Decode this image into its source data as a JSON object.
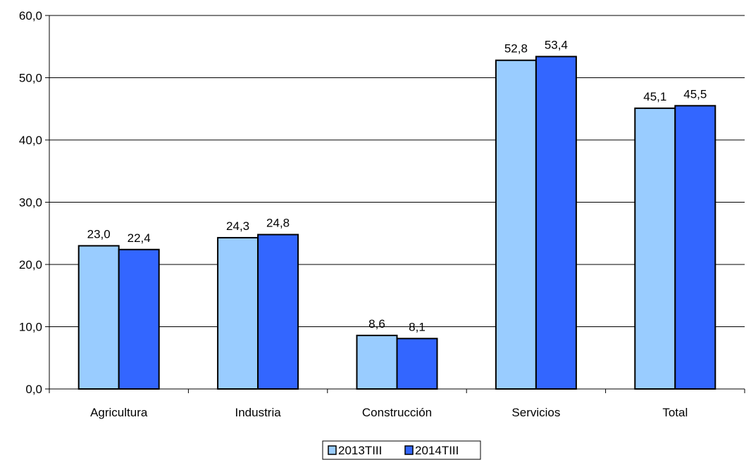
{
  "chart_data": {
    "type": "bar",
    "categories": [
      "Agricultura",
      "Industria",
      "Construcción",
      "Servicios",
      "Total"
    ],
    "series": [
      {
        "name": "2013TIII",
        "values": [
          23.0,
          24.3,
          8.6,
          52.8,
          45.1
        ],
        "color": "#99ccff"
      },
      {
        "name": "2014TIII",
        "values": [
          22.4,
          24.8,
          8.1,
          53.4,
          45.5
        ],
        "color": "#3366ff"
      }
    ],
    "data_labels": [
      [
        "23,0",
        "24,3",
        "8,6",
        "52,8",
        "45,1"
      ],
      [
        "22,4",
        "24,8",
        "8,1",
        "53,4",
        "45,5"
      ]
    ],
    "yticks": [
      0,
      10,
      20,
      30,
      40,
      50,
      60
    ],
    "ytick_labels": [
      "0,0",
      "10,0",
      "20,0",
      "30,0",
      "40,0",
      "50,0",
      "60,0"
    ],
    "ylim": [
      0,
      60
    ],
    "grid": true,
    "legend_position": "bottom"
  }
}
